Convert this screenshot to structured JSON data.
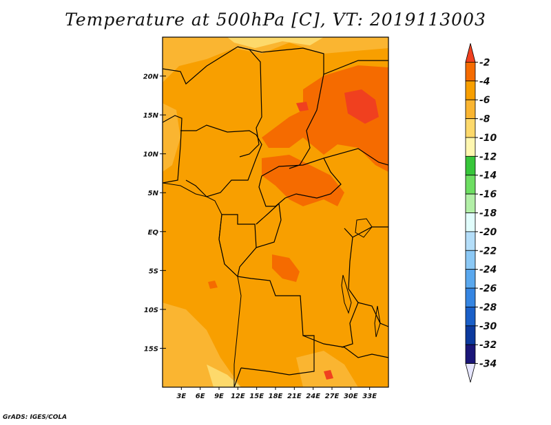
{
  "title": "Temperature at 500hPa [C], VT: 2019113003",
  "credit": "GrADS: IGES/COLA",
  "map": {
    "lon_range": [
      0,
      36
    ],
    "lat_range": [
      -20,
      25
    ],
    "lat_ticks": [
      {
        "value": 20,
        "label": "20N"
      },
      {
        "value": 15,
        "label": "15N"
      },
      {
        "value": 10,
        "label": "10N"
      },
      {
        "value": 5,
        "label": "5N"
      },
      {
        "value": 0,
        "label": "EQ"
      },
      {
        "value": -5,
        "label": "5S"
      },
      {
        "value": -10,
        "label": "10S"
      },
      {
        "value": -15,
        "label": "15S"
      }
    ],
    "lon_ticks": [
      {
        "value": 3,
        "label": "3E"
      },
      {
        "value": 6,
        "label": "6E"
      },
      {
        "value": 9,
        "label": "9E"
      },
      {
        "value": 12,
        "label": "12E"
      },
      {
        "value": 15,
        "label": "15E"
      },
      {
        "value": 18,
        "label": "18E"
      },
      {
        "value": 21,
        "label": "21E"
      },
      {
        "value": 24,
        "label": "24E"
      },
      {
        "value": 27,
        "label": "27E"
      },
      {
        "value": 30,
        "label": "30E"
      },
      {
        "value": 33,
        "label": "33E"
      }
    ]
  },
  "colorbar": {
    "labels": [
      "-2",
      "-4",
      "-6",
      "-8",
      "-10",
      "-12",
      "-14",
      "-16",
      "-18",
      "-20",
      "-22",
      "-24",
      "-26",
      "-28",
      "-30",
      "-32",
      "-34"
    ],
    "colors": [
      "#f0401f",
      "#f56b00",
      "#f89f00",
      "#fab531",
      "#fdd96b",
      "#fff7b0",
      "#37c63a",
      "#6dde62",
      "#b2efa7",
      "#e1fdfc",
      "#b4def9",
      "#8bc8f5",
      "#5aa8ee",
      "#3585e2",
      "#1a5fc8",
      "#0c3a9e",
      "#1a1678",
      "#e6e6ff"
    ]
  }
}
